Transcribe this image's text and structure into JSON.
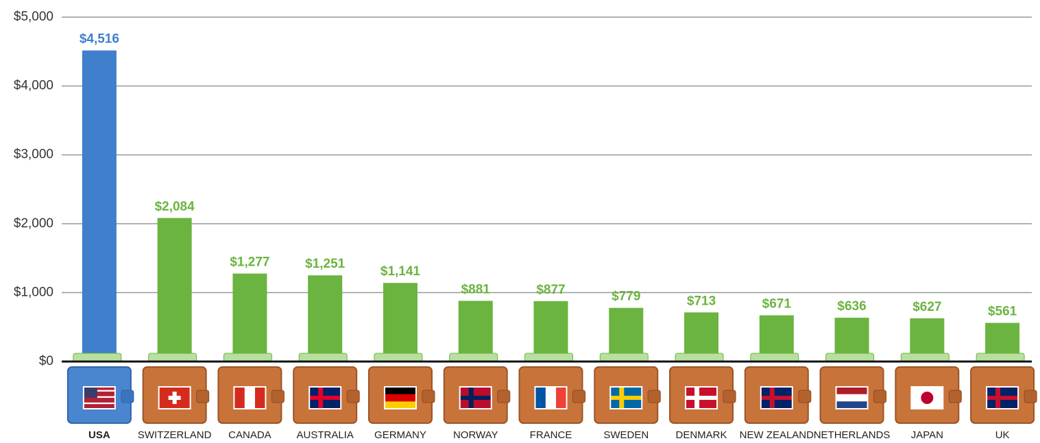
{
  "chart_data": {
    "type": "bar",
    "categories": [
      "USA",
      "SWITZERLAND",
      "CANADA",
      "AUSTRALIA",
      "GERMANY",
      "NORWAY",
      "FRANCE",
      "SWEDEN",
      "DENMARK",
      "NEW ZEALAND",
      "NETHERLANDS",
      "JAPAN",
      "UK"
    ],
    "values": [
      4516,
      2084,
      1277,
      1251,
      1141,
      881,
      877,
      779,
      713,
      671,
      636,
      627,
      561
    ],
    "value_labels": [
      "$4,516",
      "$2,084",
      "$1,277",
      "$1,251",
      "$1,141",
      "$881",
      "$877",
      "$779",
      "$713",
      "$671",
      "$636",
      "$627",
      "$561"
    ],
    "colors": [
      "#3f7fcc",
      "#6ab43f",
      "#6ab43f",
      "#6ab43f",
      "#6ab43f",
      "#6ab43f",
      "#6ab43f",
      "#6ab43f",
      "#6ab43f",
      "#6ab43f",
      "#6ab43f",
      "#6ab43f",
      "#6ab43f"
    ],
    "ylim": [
      0,
      5000
    ],
    "yticks": [
      {
        "value": 0,
        "label": "$0"
      },
      {
        "value": 1000,
        "label": "$1,000"
      },
      {
        "value": 2000,
        "label": "$2,000"
      },
      {
        "value": 3000,
        "label": "$3,000"
      },
      {
        "value": 4000,
        "label": "$4,000"
      },
      {
        "value": 5000,
        "label": "$5,000"
      }
    ],
    "grid": true
  }
}
